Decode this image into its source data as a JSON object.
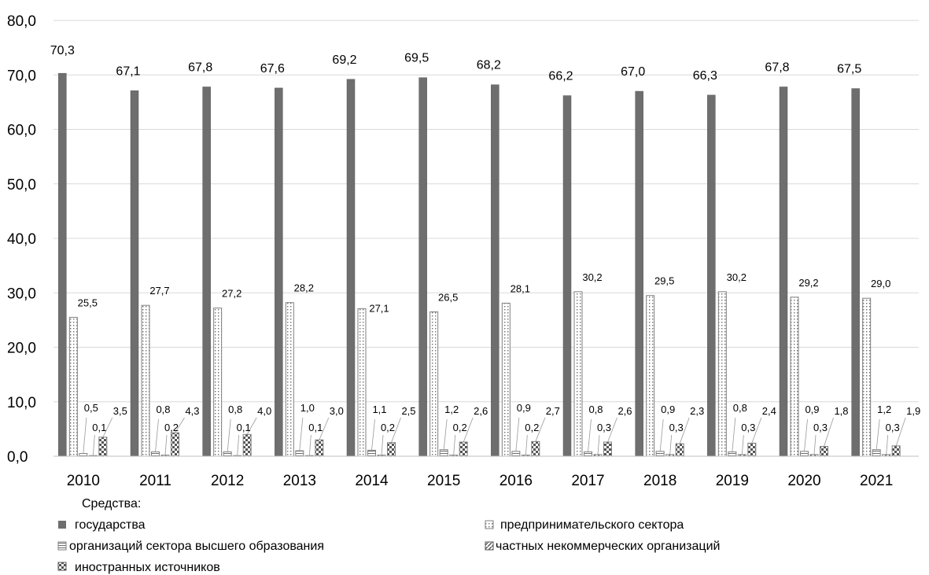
{
  "chart_data": {
    "type": "bar",
    "categories": [
      "2010",
      "2011",
      "2012",
      "2013",
      "2014",
      "2015",
      "2016",
      "2017",
      "2018",
      "2019",
      "2020",
      "2021"
    ],
    "series": [
      {
        "name": "государства",
        "values": [
          70.3,
          67.1,
          67.8,
          67.6,
          69.2,
          69.5,
          68.2,
          66.2,
          67.0,
          66.3,
          67.8,
          67.5
        ],
        "labels": [
          "70,3",
          "67,1",
          "67,8",
          "67,6",
          "69,2",
          "69,5",
          "68,2",
          "66,2",
          "67,0",
          "66,3",
          "67,8",
          "67,5"
        ]
      },
      {
        "name": "предпринимательского сектора",
        "values": [
          25.5,
          27.7,
          27.2,
          28.2,
          27.1,
          26.5,
          28.1,
          30.2,
          29.5,
          30.2,
          29.2,
          29.0
        ],
        "labels": [
          "25,5",
          "27,7",
          "27,2",
          "28,2",
          "27,1",
          "26,5",
          "28,1",
          "30,2",
          "29,5",
          "30,2",
          "29,2",
          "29,0"
        ]
      },
      {
        "name": "организаций сектора высшего образования",
        "values": [
          0.5,
          0.8,
          0.8,
          1.0,
          1.1,
          1.2,
          0.9,
          0.8,
          0.9,
          0.8,
          0.9,
          1.2
        ],
        "labels": [
          "0,5",
          "0,8",
          "0,8",
          "1,0",
          "1,1",
          "1,2",
          "0,9",
          "0,8",
          "0,9",
          "0,8",
          "0,9",
          "1,2"
        ]
      },
      {
        "name": "частных некоммерческих организаций",
        "values": [
          0.1,
          0.2,
          0.1,
          0.1,
          0.2,
          0.2,
          0.2,
          0.3,
          0.3,
          0.3,
          0.3,
          0.3
        ],
        "labels": [
          "0,1",
          "0,2",
          "0,1",
          "0,1",
          "0,2",
          "0,2",
          "0,2",
          "0,3",
          "0,3",
          "0,3",
          "0,3",
          "0,3"
        ]
      },
      {
        "name": "иностранных источников",
        "values": [
          3.5,
          4.3,
          4.0,
          3.0,
          2.5,
          2.6,
          2.7,
          2.6,
          2.3,
          2.4,
          1.8,
          1.9
        ],
        "labels": [
          "3,5",
          "4,3",
          "4,0",
          "3,0",
          "2,5",
          "2,6",
          "2,7",
          "2,6",
          "2,3",
          "2,4",
          "1,8",
          "1,9"
        ]
      }
    ],
    "ylim": [
      0,
      80
    ],
    "yticks": [
      "0,0",
      "10,0",
      "20,0",
      "30,0",
      "40,0",
      "50,0",
      "60,0",
      "70,0",
      "80,0"
    ],
    "grid": true,
    "legend": {
      "title": "Средства:",
      "position": "bottom-left"
    },
    "colors": {
      "gov": "#6e6e6e",
      "gov_edge": "#5a5a5a",
      "grid": "#d9d9d9",
      "axis": "#bfbfbf",
      "pattern_edge": "#7f7f7f"
    }
  }
}
